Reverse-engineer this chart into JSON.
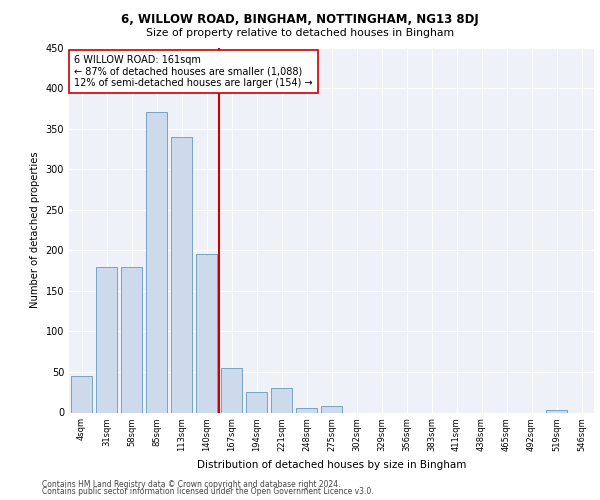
{
  "title": "6, WILLOW ROAD, BINGHAM, NOTTINGHAM, NG13 8DJ",
  "subtitle": "Size of property relative to detached houses in Bingham",
  "xlabel": "Distribution of detached houses by size in Bingham",
  "ylabel": "Number of detached properties",
  "bar_color": "#ccdaeb",
  "bar_edge_color": "#6699bb",
  "background_color": "#eef2f8",
  "grid_color": "#ffffff",
  "categories": [
    "4sqm",
    "31sqm",
    "58sqm",
    "85sqm",
    "113sqm",
    "140sqm",
    "167sqm",
    "194sqm",
    "221sqm",
    "248sqm",
    "275sqm",
    "302sqm",
    "329sqm",
    "356sqm",
    "383sqm",
    "411sqm",
    "438sqm",
    "465sqm",
    "492sqm",
    "519sqm",
    "546sqm"
  ],
  "values": [
    45,
    180,
    180,
    370,
    340,
    195,
    55,
    25,
    30,
    5,
    8,
    0,
    0,
    0,
    0,
    0,
    0,
    0,
    0,
    3,
    0
  ],
  "vline_x": 5.5,
  "vline_color": "#cc0000",
  "annotation_text": "6 WILLOW ROAD: 161sqm\n← 87% of detached houses are smaller (1,088)\n12% of semi-detached houses are larger (154) →",
  "annotation_box_color": "#ffffff",
  "annotation_box_edge": "#cc0000",
  "ylim": [
    0,
    430
  ],
  "yticks": [
    0,
    50,
    100,
    150,
    200,
    250,
    300,
    350,
    400,
    450
  ],
  "footer_line1": "Contains HM Land Registry data © Crown copyright and database right 2024.",
  "footer_line2": "Contains public sector information licensed under the Open Government Licence v3.0."
}
